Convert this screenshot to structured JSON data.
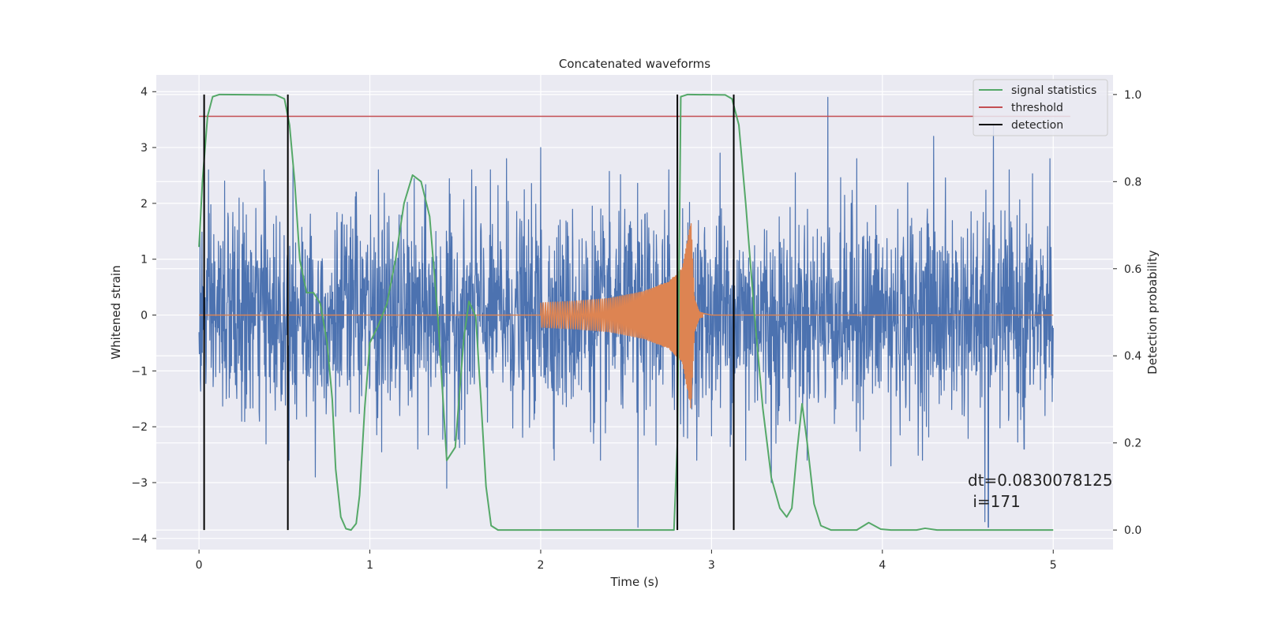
{
  "chart_data": {
    "type": "line",
    "title": "Concatenated waveforms",
    "xlabel": "Time (s)",
    "ylabel": "Whitened strain",
    "y2label": "Detection probability",
    "xlim": [
      -0.25,
      5.35
    ],
    "ylim": [
      -4.2,
      4.3
    ],
    "y2lim": [
      -0.045,
      1.045
    ],
    "xticks": [
      0,
      1,
      2,
      3,
      4,
      5
    ],
    "xtick_labels": [
      "0",
      "1",
      "2",
      "3",
      "4",
      "5"
    ],
    "yticks": [
      -4,
      -3,
      -2,
      -1,
      0,
      1,
      2,
      3,
      4
    ],
    "ytick_labels": [
      "−4",
      "−3",
      "−2",
      "−1",
      "0",
      "1",
      "2",
      "3",
      "4"
    ],
    "y2ticks": [
      0.0,
      0.2,
      0.4,
      0.6,
      0.8,
      1.0
    ],
    "y2tick_labels": [
      "0.0",
      "0.2",
      "0.4",
      "0.6",
      "0.8",
      "1.0"
    ],
    "grid": true,
    "legend_position": "top-right",
    "colors": {
      "noise": "#4c72b0",
      "chirp": "#dd8452",
      "signal_statistics": "#55a868",
      "threshold": "#c44e52",
      "detection": "#000000",
      "plot_bg": "#eaeaf2",
      "grid": "#ffffff"
    },
    "series": [
      {
        "name": "",
        "axis": "left",
        "kind": "noise",
        "x_range": [
          0,
          5
        ],
        "typical_amplitude": 0.9,
        "spikes": [
          [
            0.15,
            2.4
          ],
          [
            0.25,
            -1.9
          ],
          [
            0.38,
            2.6
          ],
          [
            0.55,
            2.7
          ],
          [
            0.68,
            -2.9
          ],
          [
            0.92,
            2.2
          ],
          [
            1.05,
            2.6
          ],
          [
            1.28,
            -2.4
          ],
          [
            1.45,
            -3.1
          ],
          [
            1.62,
            2.3
          ],
          [
            1.8,
            2.8
          ],
          [
            2.0,
            3.0
          ],
          [
            2.35,
            -2.6
          ],
          [
            2.57,
            -3.8
          ],
          [
            2.75,
            2.6
          ],
          [
            3.05,
            2.9
          ],
          [
            3.2,
            -2.6
          ],
          [
            3.35,
            -3.0
          ],
          [
            3.68,
            3.9
          ],
          [
            3.85,
            2.8
          ],
          [
            4.05,
            -2.7
          ],
          [
            4.3,
            3.2
          ],
          [
            4.6,
            -3.7
          ],
          [
            4.62,
            -3.8
          ],
          [
            4.65,
            3.4
          ],
          [
            4.83,
            -2.4
          ],
          [
            4.98,
            2.8
          ]
        ]
      },
      {
        "name": "",
        "axis": "left",
        "kind": "chirp",
        "points": [
          [
            0,
            0
          ],
          [
            2.0,
            0
          ],
          [
            2.0,
            0.22
          ],
          [
            2.2,
            0.25
          ],
          [
            2.4,
            0.3
          ],
          [
            2.6,
            0.42
          ],
          [
            2.75,
            0.6
          ],
          [
            2.83,
            0.85
          ],
          [
            2.88,
            1.7
          ],
          [
            2.9,
            0.3
          ],
          [
            2.93,
            0.05
          ],
          [
            3.0,
            0
          ],
          [
            5.0,
            0
          ]
        ]
      },
      {
        "name": "signal statistics",
        "axis": "right",
        "points": [
          [
            0,
            0.65
          ],
          [
            0.02,
            0.8
          ],
          [
            0.05,
            0.95
          ],
          [
            0.08,
            0.995
          ],
          [
            0.12,
            1.0
          ],
          [
            0.45,
            0.999
          ],
          [
            0.5,
            0.99
          ],
          [
            0.53,
            0.93
          ],
          [
            0.56,
            0.8
          ],
          [
            0.59,
            0.62
          ],
          [
            0.63,
            0.545
          ],
          [
            0.67,
            0.545
          ],
          [
            0.71,
            0.52
          ],
          [
            0.75,
            0.43
          ],
          [
            0.78,
            0.3
          ],
          [
            0.8,
            0.14
          ],
          [
            0.83,
            0.03
          ],
          [
            0.86,
            0.003
          ],
          [
            0.89,
            0.0
          ],
          [
            0.92,
            0.015
          ],
          [
            0.94,
            0.08
          ],
          [
            0.97,
            0.28
          ],
          [
            1.0,
            0.43
          ],
          [
            1.05,
            0.47
          ],
          [
            1.1,
            0.52
          ],
          [
            1.15,
            0.62
          ],
          [
            1.2,
            0.75
          ],
          [
            1.25,
            0.815
          ],
          [
            1.3,
            0.8
          ],
          [
            1.35,
            0.72
          ],
          [
            1.4,
            0.48
          ],
          [
            1.45,
            0.16
          ],
          [
            1.5,
            0.19
          ],
          [
            1.55,
            0.44
          ],
          [
            1.58,
            0.525
          ],
          [
            1.62,
            0.49
          ],
          [
            1.65,
            0.3
          ],
          [
            1.68,
            0.1
          ],
          [
            1.71,
            0.01
          ],
          [
            1.75,
            0.0
          ],
          [
            2.78,
            0.0
          ],
          [
            2.8,
            0.2
          ],
          [
            2.82,
            0.995
          ],
          [
            2.86,
            1.0
          ],
          [
            3.08,
            0.999
          ],
          [
            3.12,
            0.99
          ],
          [
            3.16,
            0.93
          ],
          [
            3.2,
            0.75
          ],
          [
            3.25,
            0.5
          ],
          [
            3.3,
            0.28
          ],
          [
            3.35,
            0.12
          ],
          [
            3.4,
            0.05
          ],
          [
            3.44,
            0.03
          ],
          [
            3.47,
            0.05
          ],
          [
            3.5,
            0.18
          ],
          [
            3.53,
            0.29
          ],
          [
            3.56,
            0.2
          ],
          [
            3.6,
            0.06
          ],
          [
            3.64,
            0.01
          ],
          [
            3.7,
            0.0
          ],
          [
            3.85,
            0.0
          ],
          [
            3.92,
            0.017
          ],
          [
            3.99,
            0.002
          ],
          [
            4.05,
            0.0
          ],
          [
            4.2,
            0.0
          ],
          [
            4.25,
            0.004
          ],
          [
            4.32,
            0.0
          ],
          [
            5.0,
            0.0
          ]
        ]
      },
      {
        "name": "threshold",
        "axis": "right",
        "points": [
          [
            0,
            0.95
          ],
          [
            5.1,
            0.95
          ]
        ]
      }
    ],
    "detection": {
      "name": "detection",
      "x": [
        0.03,
        0.52,
        2.8,
        3.13
      ],
      "y_range": [
        0,
        1
      ]
    },
    "annotation": [
      "dt=0.0830078125",
      " i=171"
    ]
  }
}
